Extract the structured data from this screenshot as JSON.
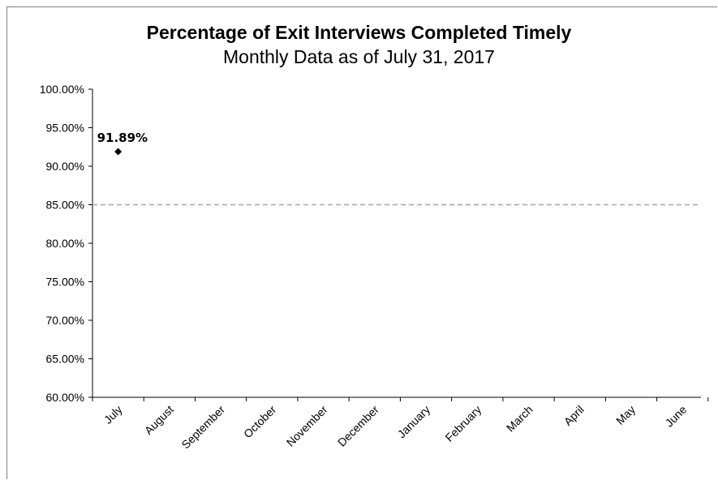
{
  "chart_data": {
    "type": "line",
    "title": "Percentage of Exit Interviews Completed Timely",
    "subtitle": "Monthly Data as of July 31, 2017",
    "xlabel": "",
    "ylabel": "",
    "categories": [
      "July",
      "August",
      "September",
      "October",
      "November",
      "December",
      "January",
      "February",
      "March",
      "April",
      "May",
      "June"
    ],
    "series": [
      {
        "values": [
          91.89,
          null,
          null,
          null,
          null,
          null,
          null,
          null,
          null,
          null,
          null,
          null
        ],
        "data_labels": [
          "91.89%"
        ],
        "marker": "diamond",
        "color": "#000000"
      }
    ],
    "target_line": {
      "value": 85.0,
      "style": "dashed",
      "color": "#a6a6a6"
    },
    "y_ticks": [
      "100.00%",
      "95.00%",
      "90.00%",
      "85.00%",
      "80.00%",
      "75.00%",
      "70.00%",
      "65.00%",
      "60.00%"
    ],
    "ylim": [
      60,
      100
    ],
    "grid": false,
    "legend": "none"
  }
}
